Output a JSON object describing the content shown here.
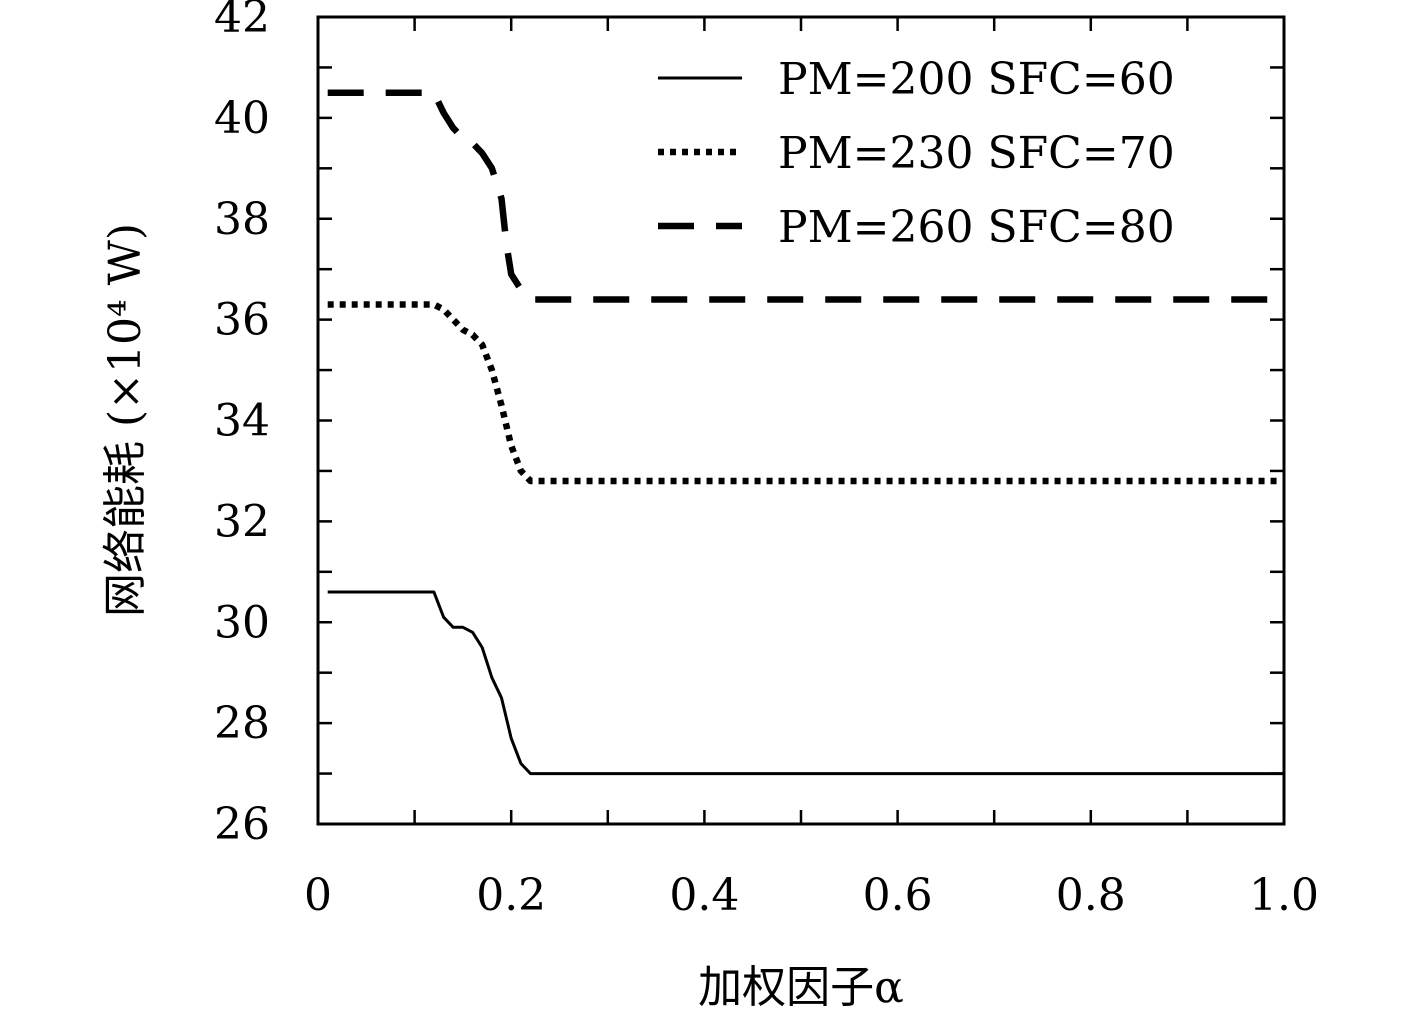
{
  "chart_data": {
    "type": "line",
    "xlabel": "加权因子α",
    "ylabel": "网络能耗 (×10⁴ W)",
    "xlim": [
      0,
      1.0
    ],
    "ylim": [
      26,
      42
    ],
    "x_ticks": [
      "0",
      "0.2",
      "0.4",
      "0.6",
      "0.8",
      "1.0"
    ],
    "y_ticks": [
      "26",
      "28",
      "30",
      "32",
      "34",
      "36",
      "38",
      "40",
      "42"
    ],
    "x_tick_values": [
      0,
      0.2,
      0.4,
      0.6,
      0.8,
      1.0
    ],
    "y_tick_values": [
      26,
      28,
      30,
      32,
      34,
      36,
      38,
      40,
      42
    ],
    "grid": false,
    "legend_position": "top-right",
    "series": [
      {
        "name": "PM=200 SFC=60",
        "style": "solid",
        "x": [
          0.01,
          0.05,
          0.1,
          0.12,
          0.13,
          0.14,
          0.15,
          0.16,
          0.17,
          0.18,
          0.19,
          0.2,
          0.21,
          0.22,
          0.3,
          0.5,
          0.7,
          1.0
        ],
        "y": [
          30.6,
          30.6,
          30.6,
          30.6,
          30.1,
          29.9,
          29.9,
          29.8,
          29.5,
          28.9,
          28.5,
          27.7,
          27.2,
          27.0,
          27.0,
          27.0,
          27.0,
          27.0
        ]
      },
      {
        "name": "PM=230 SFC=70",
        "style": "dotted",
        "x": [
          0.01,
          0.05,
          0.1,
          0.12,
          0.13,
          0.14,
          0.15,
          0.16,
          0.17,
          0.18,
          0.19,
          0.2,
          0.21,
          0.22,
          0.3,
          0.5,
          0.7,
          1.0
        ],
        "y": [
          36.3,
          36.3,
          36.3,
          36.3,
          36.2,
          36.0,
          35.8,
          35.7,
          35.5,
          35.0,
          34.3,
          33.5,
          33.0,
          32.8,
          32.8,
          32.8,
          32.8,
          32.8
        ]
      },
      {
        "name": "PM=260 SFC=80",
        "style": "dashed",
        "x": [
          0.01,
          0.05,
          0.1,
          0.12,
          0.13,
          0.14,
          0.15,
          0.16,
          0.17,
          0.18,
          0.19,
          0.195,
          0.2,
          0.21,
          0.22,
          0.3,
          0.5,
          0.7,
          1.0
        ],
        "y": [
          40.5,
          40.5,
          40.5,
          40.5,
          40.1,
          39.8,
          39.6,
          39.5,
          39.3,
          39.0,
          38.4,
          37.5,
          36.9,
          36.6,
          36.4,
          36.4,
          36.4,
          36.4,
          36.4
        ]
      }
    ]
  }
}
